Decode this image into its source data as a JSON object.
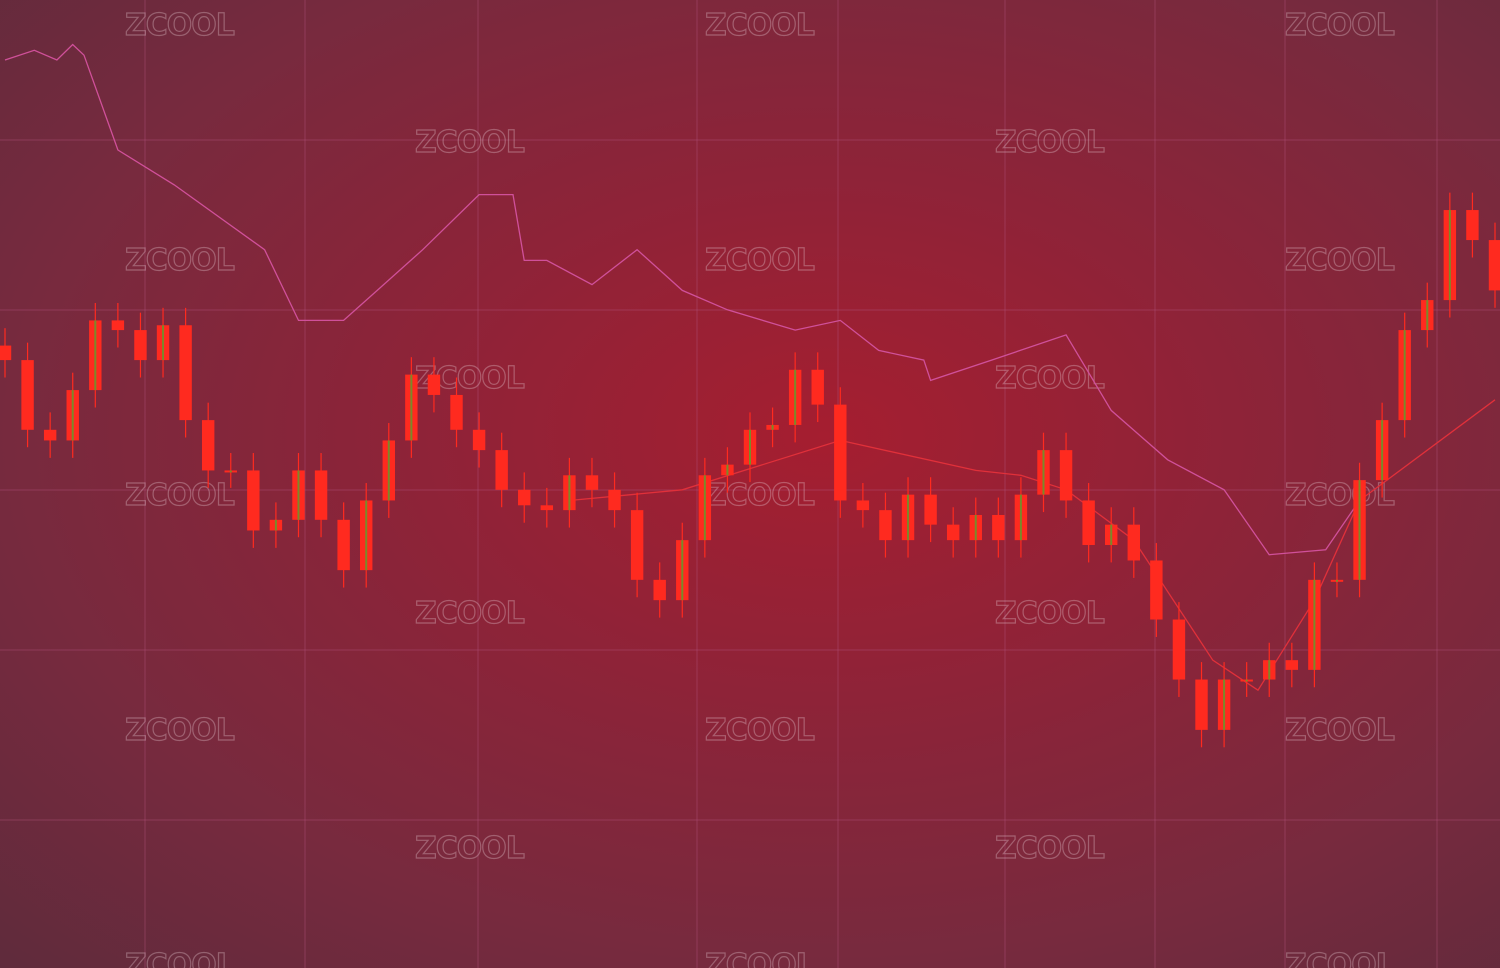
{
  "chart_data": {
    "type": "candlestick",
    "title": "",
    "xlabel": "",
    "ylabel": "",
    "axes_shown": false,
    "grid": true,
    "note_scale": "no printed axes; values are relative price levels",
    "ylim": [
      0,
      100
    ],
    "xlim": [
      0,
      66
    ],
    "closes": [
      62.8,
      55.6,
      54.5,
      59.7,
      66.9,
      65.9,
      62.8,
      66.4,
      56.6,
      51.4,
      51.4,
      45.2,
      46.3,
      51.4,
      46.3,
      41.1,
      48.3,
      54.5,
      61.3,
      59.2,
      55.6,
      53.5,
      49.4,
      47.8,
      47.3,
      50.9,
      49.4,
      47.3,
      40.1,
      38.0,
      44.2,
      50.9,
      52.0,
      55.6,
      56.1,
      61.8,
      58.2,
      48.3,
      47.3,
      44.2,
      48.9,
      45.8,
      44.2,
      46.8,
      44.2,
      48.9,
      53.5,
      48.3,
      43.7,
      45.8,
      42.1,
      36.0,
      29.8,
      24.6,
      29.8,
      29.8,
      31.8,
      30.8,
      40.1,
      40.1,
      50.4,
      56.6,
      65.9,
      69.0,
      78.3,
      75.2,
      70.0
    ],
    "series": [
      {
        "type": "line",
        "color": "#e0303a",
        "x": [
          25,
          30,
          37,
          43,
          45,
          47,
          50,
          53.5,
          55.5,
          58,
          60,
          66
        ],
        "y": [
          48.3,
          49.4,
          54.5,
          51.4,
          50.9,
          49.4,
          44.2,
          31.8,
          28.7,
          38.0,
          48.3,
          58.7
        ]
      },
      {
        "type": "line",
        "color": "#d0509a",
        "x": [
          0,
          1.3,
          2.3,
          3,
          3.5,
          5,
          7.5,
          11.5,
          13,
          15,
          18.5,
          21,
          22.5,
          23,
          24,
          26,
          28,
          30,
          32,
          35,
          37,
          38.7,
          40.7,
          41,
          43.7,
          47,
          49,
          51.5,
          54,
          56,
          58.5,
          60
        ],
        "y": [
          93.8,
          94.8,
          93.8,
          95.4,
          94.3,
          84.5,
          80.9,
          74.2,
          66.9,
          66.9,
          74.2,
          79.9,
          79.9,
          73.1,
          73.1,
          70.6,
          74.2,
          70.0,
          68.0,
          65.9,
          66.9,
          63.8,
          62.8,
          60.7,
          62.8,
          65.4,
          57.6,
          52.5,
          49.4,
          42.7,
          43.2,
          48.3
        ]
      }
    ],
    "colors": {
      "down": "#ff2a1f",
      "up": "#7a8a2a",
      "grid": "#b0507a"
    }
  },
  "watermark": "ZCOOL"
}
